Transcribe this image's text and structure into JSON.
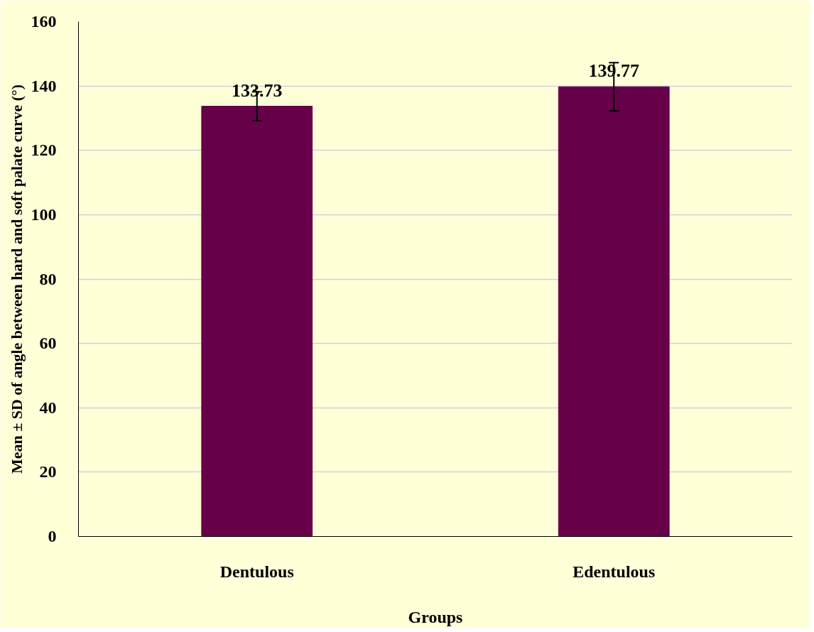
{
  "chart_data": {
    "type": "bar",
    "xlabel": "Groups",
    "ylabel": "Mean ± SD of angle between hard and soft palate curve (°)",
    "categories": [
      "Dentulous",
      "Edentulous"
    ],
    "values": [
      133.73,
      139.77
    ],
    "errors": [
      4.5,
      7.5
    ],
    "color": "#660049",
    "ylim": [
      0,
      160
    ],
    "yticks": [
      0,
      20,
      40,
      60,
      80,
      100,
      120,
      140,
      160
    ],
    "grid": "y",
    "data_labels": true
  }
}
